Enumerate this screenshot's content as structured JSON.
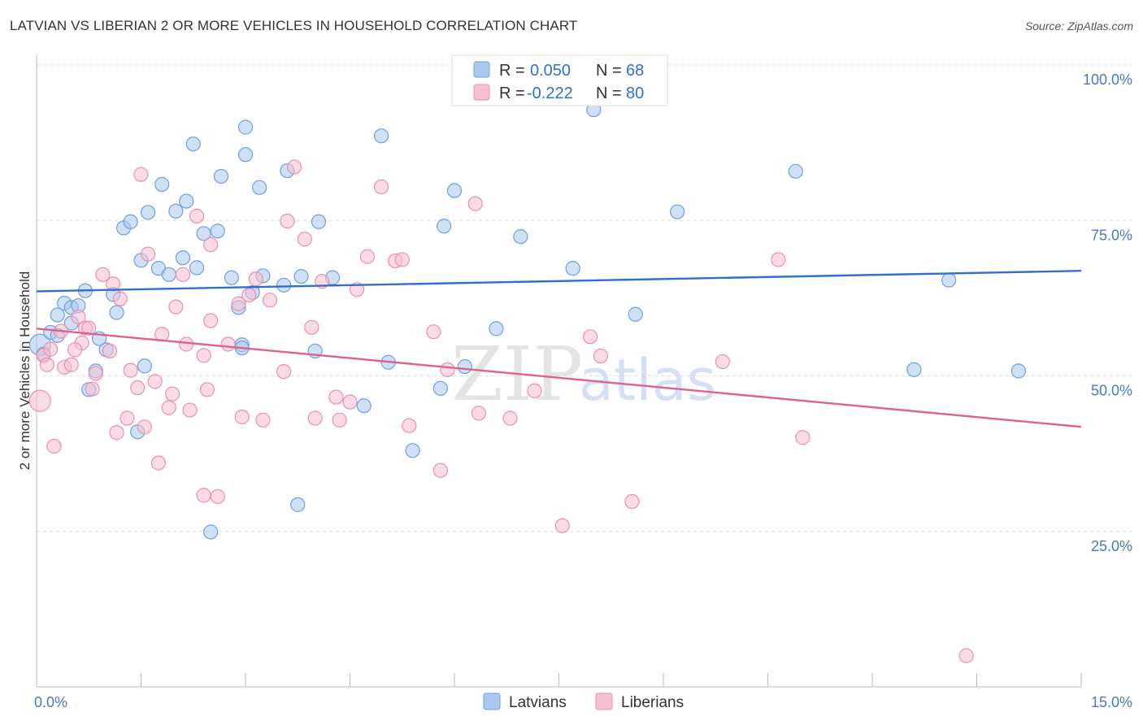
{
  "header": {
    "title": "LATVIAN VS LIBERIAN 2 OR MORE VEHICLES IN HOUSEHOLD CORRELATION CHART",
    "source": "Source: ZipAtlas.com"
  },
  "watermark": {
    "zip": "ZIP",
    "atlas": "atlas"
  },
  "legend": {
    "row1": {
      "r_label": "R =",
      "r_value": "0.050",
      "n_label": "N =",
      "n_value": "68"
    },
    "row2": {
      "r_label": "R =",
      "r_value": "-0.222",
      "n_label": "N =",
      "n_value": "80"
    }
  },
  "bottom_legend": {
    "latvians": "Latvians",
    "liberians": "Liberians"
  },
  "colors": {
    "latvian_fill": "#aac8f0",
    "latvian_stroke": "#6f9fdc",
    "latvian_line": "#2f6fd0",
    "liberian_fill": "#f7bfd2",
    "liberian_stroke": "#e98fb0",
    "liberian_line": "#e0608e"
  },
  "chart_data": {
    "type": "scatter",
    "title": "LATVIAN VS LIBERIAN 2 OR MORE VEHICLES IN HOUSEHOLD CORRELATION CHART",
    "xlabel": "",
    "ylabel": "2 or more Vehicles in Household",
    "xlim": [
      0,
      15
    ],
    "ylim": [
      0,
      100
    ],
    "x_tick_labels": [
      "0.0%",
      "15.0%"
    ],
    "y_ticks": [
      25,
      50,
      75,
      100
    ],
    "y_tick_labels": [
      "25.0%",
      "50.0%",
      "75.0%",
      "100.0%"
    ],
    "grid": true,
    "series": [
      {
        "name": "Latvians",
        "r": 0.05,
        "n": 68,
        "trend": [
          [
            0,
            63.6
          ],
          [
            15,
            66.9
          ]
        ],
        "points": [
          [
            0.05,
            55.0
          ],
          [
            0.1,
            53.5
          ],
          [
            0.2,
            57.0
          ],
          [
            0.3,
            59.8
          ],
          [
            0.4,
            61.7
          ],
          [
            0.5,
            61.0
          ],
          [
            0.5,
            58.5
          ],
          [
            0.6,
            61.3
          ],
          [
            0.7,
            63.7
          ],
          [
            0.85,
            50.8
          ],
          [
            0.9,
            56.0
          ],
          [
            1.0,
            54.2
          ],
          [
            1.15,
            60.2
          ],
          [
            1.1,
            63.1
          ],
          [
            1.25,
            73.8
          ],
          [
            1.35,
            74.8
          ],
          [
            1.5,
            68.6
          ],
          [
            1.55,
            51.6
          ],
          [
            1.6,
            76.3
          ],
          [
            1.75,
            67.3
          ],
          [
            1.8,
            80.8
          ],
          [
            1.9,
            66.3
          ],
          [
            2.0,
            76.5
          ],
          [
            2.1,
            69.0
          ],
          [
            2.15,
            78.1
          ],
          [
            2.25,
            87.3
          ],
          [
            2.3,
            67.4
          ],
          [
            2.4,
            72.9
          ],
          [
            2.5,
            24.9
          ],
          [
            2.6,
            73.3
          ],
          [
            2.65,
            82.1
          ],
          [
            2.8,
            65.8
          ],
          [
            2.9,
            61.0
          ],
          [
            2.95,
            55.0
          ],
          [
            2.95,
            54.5
          ],
          [
            3.0,
            85.6
          ],
          [
            3.0,
            90.0
          ],
          [
            3.1,
            63.4
          ],
          [
            3.2,
            80.3
          ],
          [
            3.25,
            66.1
          ],
          [
            3.55,
            64.6
          ],
          [
            3.6,
            83.0
          ],
          [
            3.75,
            29.3
          ],
          [
            3.8,
            66.0
          ],
          [
            4.0,
            54.0
          ],
          [
            4.05,
            74.8
          ],
          [
            4.25,
            65.8
          ],
          [
            4.7,
            45.2
          ],
          [
            4.95,
            88.6
          ],
          [
            5.05,
            52.2
          ],
          [
            5.4,
            38.0
          ],
          [
            5.8,
            48.0
          ],
          [
            5.85,
            74.1
          ],
          [
            6.0,
            79.8
          ],
          [
            6.15,
            51.5
          ],
          [
            6.6,
            57.6
          ],
          [
            6.95,
            72.4
          ],
          [
            7.7,
            67.3
          ],
          [
            8.0,
            92.8
          ],
          [
            8.6,
            59.9
          ],
          [
            9.2,
            76.4
          ],
          [
            10.9,
            82.9
          ],
          [
            12.6,
            51.0
          ],
          [
            13.1,
            65.4
          ],
          [
            14.1,
            50.8
          ],
          [
            1.45,
            41.0
          ],
          [
            0.3,
            56.5
          ],
          [
            0.75,
            47.8
          ]
        ]
      },
      {
        "name": "Liberians",
        "r": -0.222,
        "n": 80,
        "trend": [
          [
            0,
            57.6
          ],
          [
            15,
            41.8
          ]
        ],
        "points": [
          [
            0.05,
            46.0
          ],
          [
            0.1,
            53.3
          ],
          [
            0.15,
            51.8
          ],
          [
            0.2,
            54.3
          ],
          [
            0.25,
            38.7
          ],
          [
            0.35,
            57.2
          ],
          [
            0.4,
            51.4
          ],
          [
            0.5,
            51.8
          ],
          [
            0.6,
            59.5
          ],
          [
            0.65,
            55.3
          ],
          [
            0.7,
            57.7
          ],
          [
            0.75,
            57.7
          ],
          [
            0.8,
            47.9
          ],
          [
            0.85,
            50.4
          ],
          [
            0.95,
            66.3
          ],
          [
            1.05,
            54.0
          ],
          [
            1.1,
            64.8
          ],
          [
            1.15,
            40.9
          ],
          [
            1.2,
            62.4
          ],
          [
            1.3,
            43.2
          ],
          [
            1.35,
            50.9
          ],
          [
            1.45,
            48.1
          ],
          [
            1.5,
            82.4
          ],
          [
            1.55,
            41.8
          ],
          [
            1.6,
            69.6
          ],
          [
            1.7,
            49.1
          ],
          [
            1.8,
            56.7
          ],
          [
            1.9,
            44.9
          ],
          [
            1.95,
            47.1
          ],
          [
            2.0,
            61.1
          ],
          [
            2.1,
            66.3
          ],
          [
            2.15,
            55.1
          ],
          [
            2.3,
            75.7
          ],
          [
            2.4,
            53.3
          ],
          [
            2.4,
            30.8
          ],
          [
            2.45,
            47.8
          ],
          [
            2.5,
            71.1
          ],
          [
            2.5,
            58.9
          ],
          [
            2.6,
            30.6
          ],
          [
            2.75,
            55.1
          ],
          [
            2.9,
            61.6
          ],
          [
            2.95,
            43.4
          ],
          [
            3.05,
            63.0
          ],
          [
            3.15,
            65.6
          ],
          [
            3.25,
            42.9
          ],
          [
            3.35,
            62.2
          ],
          [
            3.55,
            50.7
          ],
          [
            3.6,
            74.9
          ],
          [
            3.7,
            83.6
          ],
          [
            3.85,
            72.0
          ],
          [
            3.95,
            57.8
          ],
          [
            4.0,
            43.2
          ],
          [
            4.1,
            65.2
          ],
          [
            4.3,
            46.6
          ],
          [
            4.35,
            42.9
          ],
          [
            4.5,
            45.8
          ],
          [
            4.6,
            63.9
          ],
          [
            4.75,
            69.2
          ],
          [
            4.95,
            80.4
          ],
          [
            5.15,
            68.5
          ],
          [
            5.25,
            68.7
          ],
          [
            5.35,
            42.0
          ],
          [
            5.7,
            57.1
          ],
          [
            5.8,
            34.8
          ],
          [
            5.9,
            51.0
          ],
          [
            6.3,
            77.7
          ],
          [
            6.8,
            43.2
          ],
          [
            7.15,
            47.6
          ],
          [
            7.55,
            25.9
          ],
          [
            7.95,
            56.3
          ],
          [
            8.1,
            53.2
          ],
          [
            8.55,
            29.8
          ],
          [
            9.85,
            52.3
          ],
          [
            10.65,
            68.7
          ],
          [
            11.0,
            40.1
          ],
          [
            13.35,
            5.0
          ],
          [
            0.55,
            54.2
          ],
          [
            2.2,
            44.5
          ],
          [
            1.75,
            36.0
          ],
          [
            6.35,
            44.0
          ]
        ]
      }
    ]
  }
}
